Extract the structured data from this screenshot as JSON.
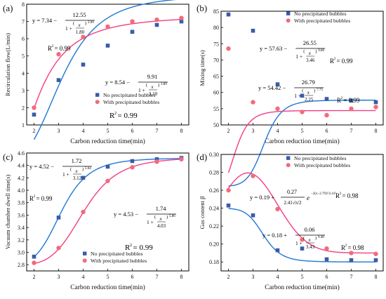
{
  "figure": {
    "marker_blue": "#3a5ba8",
    "marker_pink": "#f26b7a",
    "curve_blue": "#1f77d4",
    "curve_pink": "#f23d86"
  },
  "chart_data": [
    {
      "panel_label": "(a)",
      "type": "scatter",
      "xlabel": "Carbon reduction time(min)",
      "ylabel": "Recirculation flow(L/min)",
      "xlim": [
        1.7,
        8.3
      ],
      "ylim": [
        1,
        8
      ],
      "x_ticks": [
        2,
        3,
        4,
        5,
        6,
        7,
        8
      ],
      "y_ticks": [
        1,
        2,
        3,
        4,
        5,
        6,
        7,
        8
      ],
      "legend": [
        "No precipitated bubbles",
        "With precipitated bubbles"
      ],
      "legend_position": "bottom-right",
      "series": [
        {
          "name": "No precipitated bubbles",
          "marker": "square",
          "x": [
            2,
            3,
            4,
            5,
            6,
            7,
            8
          ],
          "values": [
            1.6,
            3.6,
            4.5,
            5.6,
            6.4,
            6.8,
            7.0
          ],
          "fit": {
            "A": 8.54,
            "B": 9.91,
            "c": 3.1,
            "p": 3.89
          }
        },
        {
          "name": "With precipitated bubbles",
          "marker": "circle",
          "x": [
            2,
            3,
            4,
            5,
            6,
            7,
            8
          ],
          "values": [
            2.0,
            5.1,
            6.1,
            6.7,
            7.0,
            7.1,
            7.2
          ],
          "fit": {
            "A": 7.34,
            "B": 12.55,
            "c": 1.8,
            "p": 2.69
          }
        }
      ],
      "annotations": {
        "eq_pink": {
          "lead": "y = 7.34 −",
          "num": "12.55",
          "one_plus": "1 +",
          "frac_x": "x",
          "frac_c": "1.80",
          "exp": "2.69"
        },
        "r2_pink": {
          "r": "R",
          "sup": "2",
          "val": "= 0.99"
        },
        "eq_blue": {
          "lead": "y = 8.54 −",
          "num": "9.91",
          "one_plus": "1 +",
          "frac_x": "x",
          "frac_c": "3.10",
          "exp": "3.89"
        },
        "r2_blue": {
          "r": "R",
          "sup": "2",
          "val": "= 0.99"
        }
      }
    },
    {
      "panel_label": "(b)",
      "type": "scatter",
      "xlabel": "Carbon reduction time(min)",
      "ylabel": "Mixing time(s)",
      "xlim": [
        1.7,
        8.3
      ],
      "ylim": [
        50,
        85
      ],
      "x_ticks": [
        2,
        3,
        4,
        5,
        6,
        7,
        8
      ],
      "y_ticks": [
        50,
        55,
        60,
        65,
        70,
        75,
        80,
        85
      ],
      "legend": [
        "No precipitated bubbles",
        "With precipitated bubbles"
      ],
      "legend_position": "top-right",
      "series": [
        {
          "name": "No precipitated bubbles",
          "marker": "square",
          "x": [
            2,
            3,
            4,
            5,
            6,
            7,
            8
          ],
          "values": [
            84.0,
            79.0,
            62.5,
            59.0,
            58.0,
            57.5,
            57.0
          ],
          "fit": {
            "A": 57.63,
            "B": 26.55,
            "c": 3.46,
            "p": 9.86
          }
        },
        {
          "name": "With precipitated bubbles",
          "marker": "circle",
          "x": [
            2,
            3,
            4,
            5,
            6,
            7,
            8
          ],
          "values": [
            73.5,
            57.0,
            55.0,
            54.0,
            53.0,
            55.0,
            55.5
          ],
          "fit": {
            "A": 54.42,
            "B": 26.79,
            "c": 2.25,
            "p": 7.75
          }
        }
      ],
      "annotations": {
        "eq_blue": {
          "lead": "y = 57.63 −",
          "num": "26.55",
          "one_plus": "1 +",
          "frac_x": "x",
          "frac_c": "3.46",
          "exp": "9.86"
        },
        "r2_blue": {
          "r": "R",
          "sup": "2",
          "val": "= 0.99"
        },
        "eq_pink": {
          "lead": "y = 54.42 −",
          "num": "26.79",
          "one_plus": "1 +",
          "frac_x": "x",
          "frac_c": "2.25",
          "exp": "7.75"
        },
        "r2_pink": {
          "r": "R",
          "sup": "2",
          "val": "= 0.99"
        }
      }
    },
    {
      "panel_label": "(c)",
      "type": "scatter",
      "xlabel": "Carbon reduction time(min)",
      "ylabel": "Vacuum chamber dwell time(s)",
      "xlim": [
        1.7,
        8.3
      ],
      "ylim": [
        2.7,
        4.6
      ],
      "x_ticks": [
        2,
        3,
        4,
        5,
        6,
        7,
        8
      ],
      "y_ticks": [
        2.8,
        3.0,
        3.2,
        3.4,
        3.6,
        3.8,
        4.0,
        4.2,
        4.4,
        4.6
      ],
      "y_tick_labels": [
        "2.8",
        "3.0",
        "3.2",
        "3.4",
        "3.6",
        "3.8",
        "4.0",
        "4.2",
        "4.4",
        "4.6"
      ],
      "legend": [
        "No precipitated bubbles",
        "With precipitated bubbles"
      ],
      "legend_position": "bottom-right",
      "series": [
        {
          "name": "No precipitated bubbles",
          "marker": "square",
          "x": [
            2,
            3,
            4,
            5,
            6,
            7,
            8
          ],
          "values": [
            2.93,
            3.56,
            4.2,
            4.38,
            4.47,
            4.5,
            4.52
          ],
          "fit": {
            "A": 4.52,
            "B": 1.72,
            "c": 3.12,
            "p": 5.64
          }
        },
        {
          "name": "With precipitated bubbles",
          "marker": "circle",
          "x": [
            2,
            3,
            4,
            5,
            6,
            7,
            8
          ],
          "values": [
            2.83,
            3.07,
            3.65,
            4.15,
            4.37,
            4.46,
            4.5
          ],
          "fit": {
            "A": 4.53,
            "B": 1.74,
            "c": 4.03,
            "p": 5.86
          }
        }
      ],
      "annotations": {
        "eq_blue": {
          "lead": "y = 4.52 −",
          "num": "1.72",
          "one_plus": "1 +",
          "frac_x": "x",
          "frac_c": "3.12",
          "exp": "5.64"
        },
        "r2_blue": {
          "r": "R",
          "sup": "2",
          "val": "= 0.99"
        },
        "eq_pink": {
          "lead": "y = 4.53 −",
          "num": "1.74",
          "one_plus": "1 +",
          "frac_x": "x",
          "frac_c": "4.03",
          "exp": "5.86"
        },
        "r2_pink": {
          "r": "R",
          "sup": "2",
          "val": "= 0.99"
        }
      }
    },
    {
      "panel_label": "(d)",
      "type": "scatter",
      "xlabel": "Carbon reduction time(min)",
      "ylabel": "Gas content β",
      "xlim": [
        1.7,
        8.3
      ],
      "ylim": [
        0.17,
        0.3
      ],
      "x_ticks": [
        2,
        3,
        4,
        5,
        6,
        7,
        8
      ],
      "y_ticks": [
        0.18,
        0.2,
        0.22,
        0.24,
        0.26,
        0.28,
        0.3
      ],
      "y_tick_labels": [
        "0.18",
        "0.20",
        "0.22",
        "0.24",
        "0.26",
        "0.28",
        "0.30"
      ],
      "legend": [
        "No precipitated bubbles",
        "With precipitated bubbles"
      ],
      "legend_position": "top-right",
      "series": [
        {
          "name": "No precipitated bubbles",
          "marker": "square",
          "x": [
            2,
            3,
            4,
            5,
            6,
            7,
            8
          ],
          "values": [
            0.243,
            0.232,
            0.193,
            0.195,
            0.183,
            0.182,
            0.182
          ],
          "fit": {
            "A": 0.18,
            "B": 0.06,
            "c": 3.43,
            "p": 9.48
          }
        },
        {
          "name": "With precipitated bubbles",
          "marker": "circle",
          "x": [
            2,
            3,
            4,
            5,
            6,
            7,
            8
          ],
          "values": [
            0.26,
            0.276,
            0.239,
            0.205,
            0.195,
            0.19,
            0.189
          ],
          "fit_gauss": {
            "y0": 0.19,
            "amp": 0.27,
            "w": 2.41,
            "xc": 2.79
          }
        }
      ],
      "annotations": {
        "eq_pink": {
          "lead": "y = 0.19 +",
          "num": "0.27",
          "den": "2.41√π/2",
          "e": "e",
          "exp": "−2(x−2.79)²/2.41²"
        },
        "r2_pink": {
          "r": "R",
          "sup": "2",
          "val": "= 0.98"
        },
        "eq_blue": {
          "lead": "y = 0.18 +",
          "num": "0.06",
          "one_plus": "1 +",
          "frac_x": "x",
          "frac_c": "3.43",
          "exp": "9.48"
        },
        "r2_blue": {
          "r": "R",
          "sup": "2",
          "val": "= 0.98"
        }
      }
    }
  ]
}
